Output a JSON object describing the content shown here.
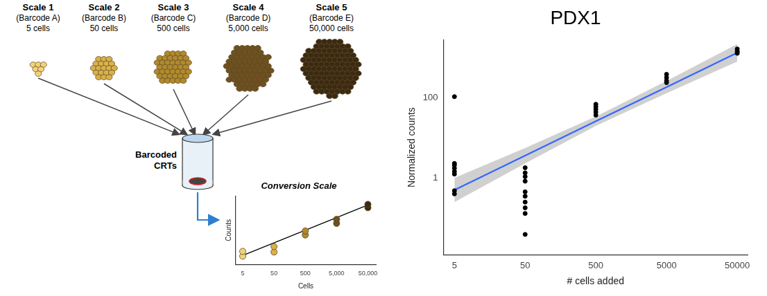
{
  "diagram": {
    "scales": [
      {
        "title": "Scale 1",
        "barcode": "(Barcode A)",
        "cells": "5 cells",
        "color": "#f2d27a"
      },
      {
        "title": "Scale 2",
        "barcode": "(Barcode B)",
        "cells": "50 cells",
        "color": "#d9b14a"
      },
      {
        "title": "Scale 3",
        "barcode": "(Barcode C)",
        "cells": "500 cells",
        "color": "#b08a2e"
      },
      {
        "title": "Scale 4",
        "barcode": "(Barcode D)",
        "cells": "5,000 cells",
        "color": "#6e5120"
      },
      {
        "title": "Scale 5",
        "barcode": "(Barcode E)",
        "cells": "50,000 cells",
        "color": "#3b2a12"
      }
    ],
    "tube_label": "Barcoded CRTs"
  },
  "chart_data": [
    {
      "type": "scatter",
      "title": "PDX1",
      "x_label": "# cells added",
      "y_label": "Normalized counts",
      "log": true,
      "grid": false,
      "color": "#000000",
      "x": [
        5,
        5,
        5,
        5,
        5,
        5,
        5,
        5,
        50,
        50,
        50,
        50,
        50,
        50,
        50,
        50,
        50,
        50,
        500,
        500,
        500,
        500,
        500,
        5000,
        5000,
        5000,
        5000,
        50000,
        50000,
        50000,
        50000
      ],
      "values": [
        107,
        2.3,
        2.1,
        1.75,
        1.45,
        1.25,
        0.48,
        0.4,
        1.8,
        1.34,
        1.08,
        0.83,
        0.45,
        0.35,
        0.25,
        0.18,
        0.13,
        0.039,
        69,
        60,
        52,
        44,
        37,
        386,
        320,
        268,
        240,
        1660,
        1490,
        1390,
        1290
      ],
      "fit": {
        "x": [
          5,
          50,
          500,
          5000,
          50000
        ],
        "values": [
          0.5,
          3.6,
          26,
          185,
          1330
        ],
        "lower": [
          0.25,
          2.3,
          20,
          130,
          800
        ],
        "upper": [
          1.0,
          5.6,
          34,
          265,
          2200
        ],
        "color": "#3366ff"
      },
      "xlim": [
        3.5,
        70000
      ],
      "xticks": [
        5,
        50,
        500,
        5000,
        50000
      ],
      "ylim": [
        0.012,
        2800
      ],
      "yticks": [
        1,
        100
      ]
    },
    {
      "type": "scatter",
      "title": "Conversion Scale",
      "x_label": "Cells",
      "y_label": "Counts",
      "log": "x",
      "grid": false,
      "tick_labels": "x",
      "x": [
        5,
        5,
        50,
        50,
        500,
        500,
        5000,
        5000,
        50000,
        50000
      ],
      "values": [
        1.2,
        1.9,
        1.8,
        2.6,
        4.3,
        4.9,
        6.0,
        6.6,
        8.3,
        8.8
      ],
      "colors": [
        "#f2d27a",
        "#f2d27a",
        "#d9b14a",
        "#d9b14a",
        "#b08a2e",
        "#b08a2e",
        "#6e5120",
        "#6e5120",
        "#3b2a12",
        "#3b2a12"
      ],
      "fit": {
        "x": [
          5,
          50000
        ],
        "values": [
          1.3,
          8.7
        ],
        "color": "#000000"
      },
      "xlim": [
        3,
        90000
      ],
      "xticks": [
        5,
        50,
        500,
        {
          "value": 5000,
          "label": "5,000"
        },
        {
          "value": 50000,
          "label": "50,000"
        }
      ],
      "ylim": [
        0,
        10
      ]
    }
  ]
}
